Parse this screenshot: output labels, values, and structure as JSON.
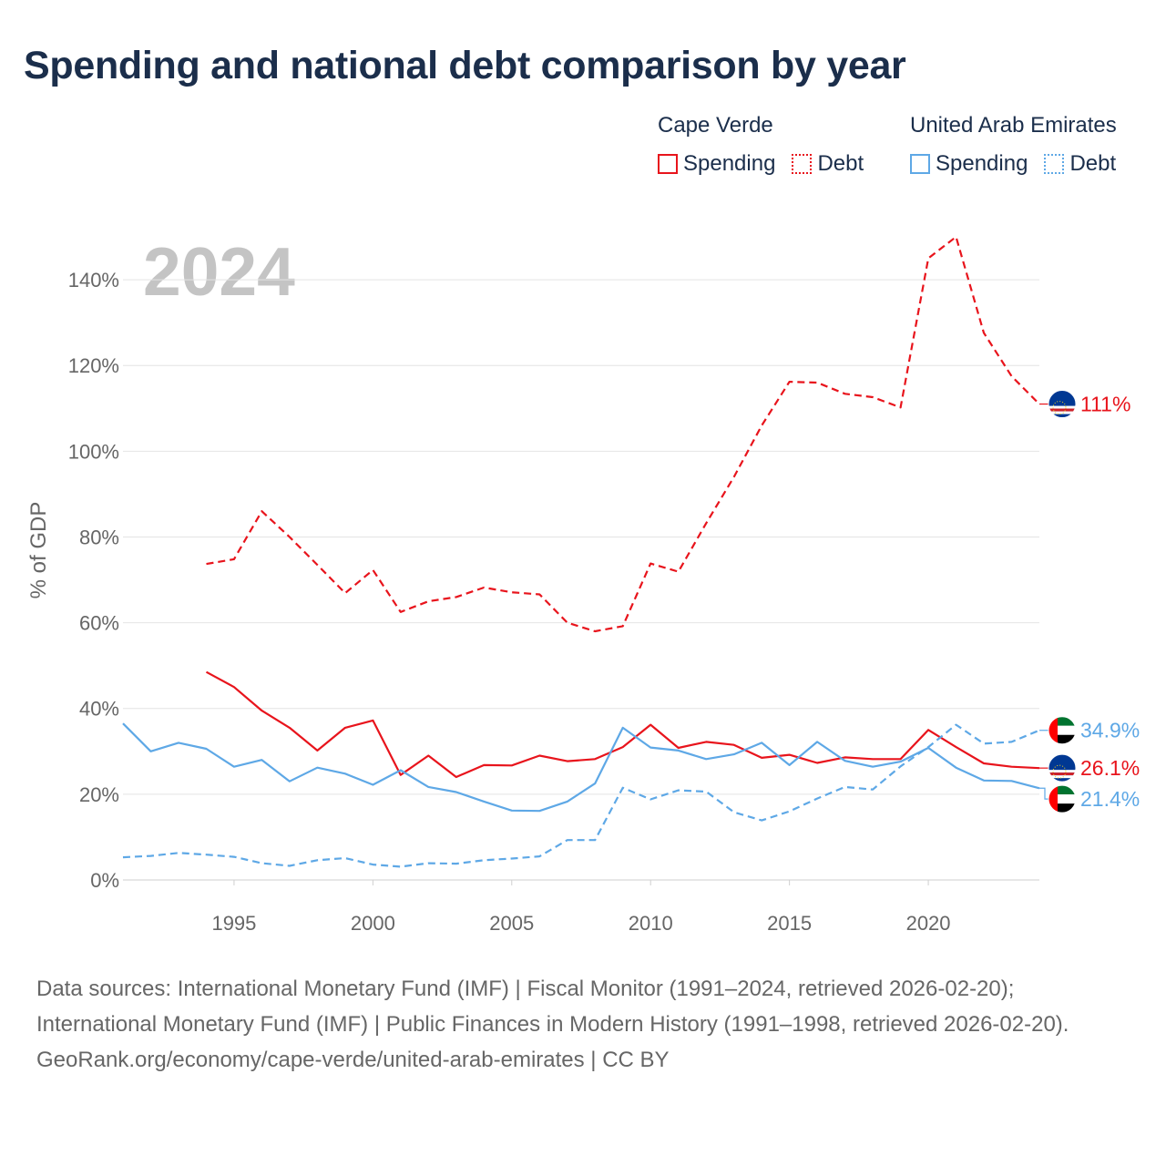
{
  "title": "Spending and national debt comparison by year",
  "legend": {
    "groups": [
      {
        "country": "Cape Verde",
        "spending_label": "Spending",
        "debt_label": "Debt",
        "color": "#e8141c"
      },
      {
        "country": "United Arab Emirates",
        "spending_label": "Spending",
        "debt_label": "Debt",
        "color": "#5ea8e6"
      }
    ]
  },
  "chart_data": {
    "type": "line",
    "title": "Spending and national debt comparison by year",
    "ylabel": "% of GDP",
    "xlabel": "",
    "xlim": [
      1991,
      2024
    ],
    "ylim": [
      0,
      150
    ],
    "year_label": "2024",
    "x_ticks": [
      1995,
      2000,
      2005,
      2010,
      2015,
      2020
    ],
    "y_ticks": [
      0,
      20,
      40,
      60,
      80,
      100,
      120,
      140
    ],
    "y_tick_labels": [
      "0%",
      "20%",
      "40%",
      "60%",
      "80%",
      "100%",
      "120%",
      "140%"
    ],
    "series": [
      {
        "name": "Cape Verde Spending",
        "country": "Cape Verde",
        "style": "solid",
        "color": "#e8141c",
        "x": [
          1994,
          1995,
          1996,
          1997,
          1998,
          1999,
          2000,
          2001,
          2002,
          2003,
          2004,
          2005,
          2006,
          2007,
          2008,
          2009,
          2010,
          2011,
          2012,
          2013,
          2014,
          2015,
          2016,
          2017,
          2018,
          2019,
          2020,
          2021,
          2022,
          2023,
          2024
        ],
        "values": [
          48.5,
          45,
          39.5,
          35.5,
          30.2,
          35.5,
          37.2,
          24.5,
          29,
          24,
          26.8,
          26.7,
          29,
          27.7,
          28.2,
          31,
          36.2,
          30.8,
          32.2,
          31.5,
          28.5,
          29.2,
          27.3,
          28.6,
          28.2,
          28.2,
          35,
          31,
          27.2,
          26.4,
          26.1
        ],
        "end_label": "26.1%"
      },
      {
        "name": "Cape Verde Debt",
        "country": "Cape Verde",
        "style": "dashed",
        "color": "#e8141c",
        "x": [
          1994,
          1995,
          1996,
          1997,
          1998,
          1999,
          2000,
          2001,
          2002,
          2003,
          2004,
          2005,
          2006,
          2007,
          2008,
          2009,
          2010,
          2011,
          2012,
          2013,
          2014,
          2015,
          2016,
          2017,
          2018,
          2019,
          2020,
          2021,
          2022,
          2023,
          2024
        ],
        "values": [
          73.7,
          74.8,
          86,
          80,
          73.5,
          66.9,
          72.3,
          62.5,
          65,
          66,
          68.2,
          67.1,
          66.6,
          60,
          58,
          59.2,
          73.8,
          71.9,
          83.2,
          94,
          106,
          116.2,
          116,
          113.4,
          112.6,
          110.2,
          145,
          150,
          127.6,
          117.5,
          111
        ],
        "end_label": "111%"
      },
      {
        "name": "United Arab Emirates Spending",
        "country": "United Arab Emirates",
        "style": "solid",
        "color": "#5ea8e6",
        "x": [
          1991,
          1992,
          1993,
          1994,
          1995,
          1996,
          1997,
          1998,
          1999,
          2000,
          2001,
          2002,
          2003,
          2004,
          2005,
          2006,
          2007,
          2008,
          2009,
          2010,
          2011,
          2012,
          2013,
          2014,
          2015,
          2016,
          2017,
          2018,
          2019,
          2020,
          2021,
          2022,
          2023,
          2024
        ],
        "values": [
          36.5,
          30,
          32,
          30.6,
          26.4,
          28,
          23,
          26.2,
          24.8,
          22.2,
          25.6,
          21.7,
          20.5,
          18.3,
          16.2,
          16.1,
          18.3,
          22.5,
          35.5,
          30.9,
          30.2,
          28.2,
          29.3,
          32,
          26.8,
          32.2,
          27.8,
          26.4,
          27.6,
          30.8,
          26.2,
          23.2,
          23.1,
          21.4
        ],
        "end_label": "21.4%"
      },
      {
        "name": "United Arab Emirates Debt",
        "country": "United Arab Emirates",
        "style": "dashed",
        "color": "#5ea8e6",
        "x": [
          1991,
          1992,
          1993,
          1994,
          1995,
          1996,
          1997,
          1998,
          1999,
          2000,
          2001,
          2002,
          2003,
          2004,
          2005,
          2006,
          2007,
          2008,
          2009,
          2010,
          2011,
          2012,
          2013,
          2014,
          2015,
          2016,
          2017,
          2018,
          2019,
          2020,
          2021,
          2022,
          2023,
          2024
        ],
        "values": [
          5.3,
          5.6,
          6.3,
          5.9,
          5.4,
          3.9,
          3.3,
          4.6,
          5.1,
          3.6,
          3.1,
          3.9,
          3.8,
          4.6,
          5,
          5.5,
          9.3,
          9.3,
          21.5,
          18.8,
          20.9,
          20.6,
          15.8,
          13.9,
          16,
          19,
          21.7,
          21.1,
          26.5,
          31,
          36.2,
          31.8,
          32.2,
          34.9
        ],
        "end_label": "34.9%"
      }
    ]
  },
  "sources": {
    "line1": "Data sources: International Monetary Fund (IMF) | Fiscal Monitor (1991–2024, retrieved 2026-02-20); International Monetary Fund (IMF) | Public Finances in Modern History (1991–1998, retrieved 2026-02-20).",
    "line2": "GeoRank.org/economy/cape-verde/united-arab-emirates | CC BY"
  }
}
